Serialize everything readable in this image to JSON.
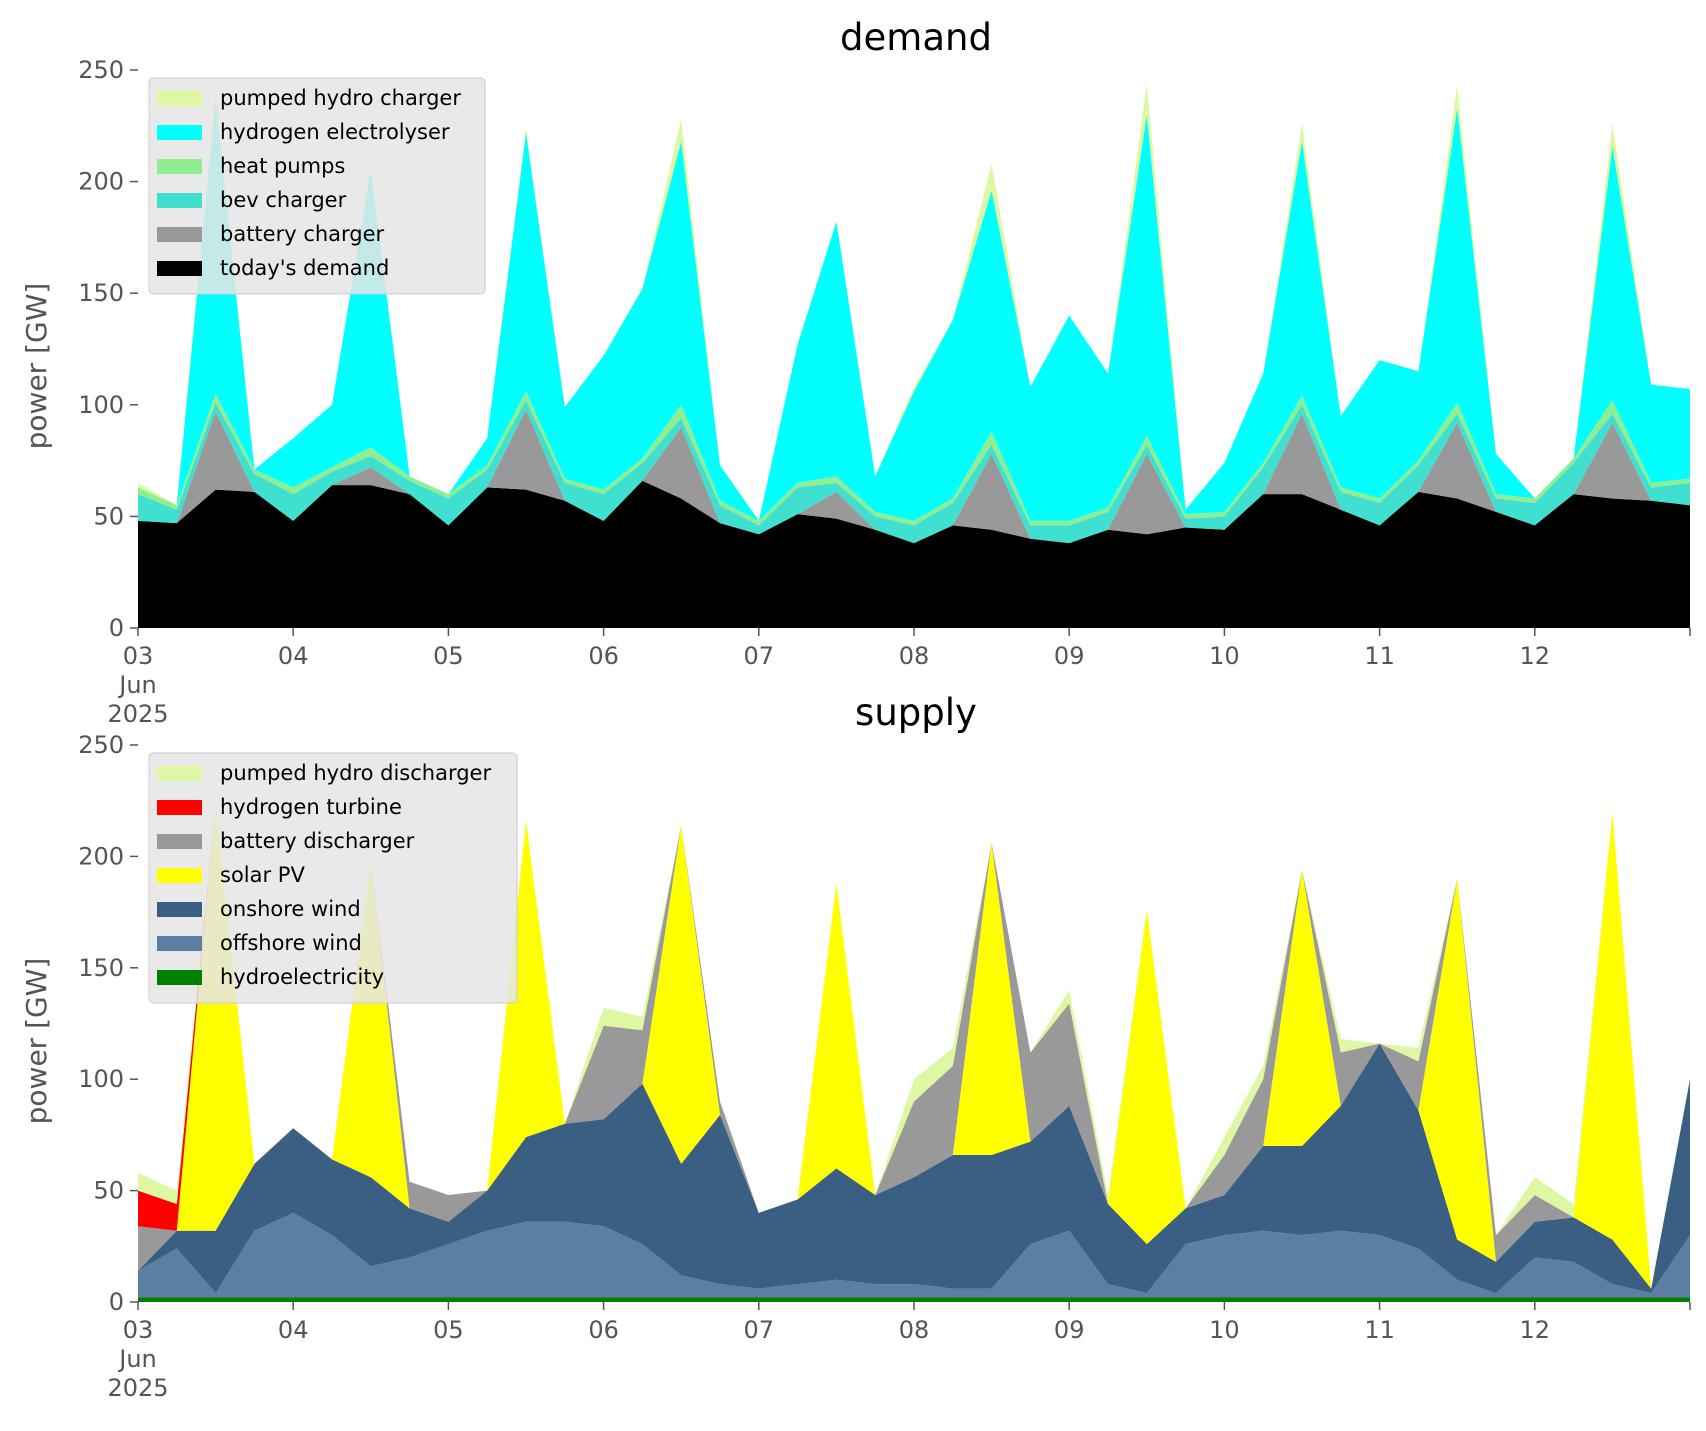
{
  "chart_data": [
    {
      "type": "area",
      "stacked": true,
      "title": "demand",
      "xlabel": "",
      "ylabel": "power [GW]",
      "ylim": [
        0,
        250
      ],
      "yticks": [
        0,
        50,
        100,
        150,
        200,
        250
      ],
      "xlim": [
        "2025-06-03",
        "2025-06-13"
      ],
      "xticks": [
        "2025-06-03",
        "2025-06-04",
        "2025-06-05",
        "2025-06-06",
        "2025-06-07",
        "2025-06-08",
        "2025-06-09",
        "2025-06-10",
        "2025-06-11",
        "2025-06-12",
        "2025-06-13"
      ],
      "xtick_labels": [
        [
          "03",
          "Jun",
          "2025"
        ],
        [
          "04"
        ],
        [
          "05"
        ],
        [
          "06"
        ],
        [
          "07"
        ],
        [
          "08"
        ],
        [
          "09"
        ],
        [
          "10"
        ],
        [
          "11"
        ],
        [
          "12"
        ],
        [
          ""
        ]
      ],
      "grid": false,
      "legend_position": "upper left",
      "legend": [
        "pumped hydro charger",
        "hydrogen electrolyser",
        "heat pumps",
        "bev charger",
        "battery charger",
        "today's demand"
      ],
      "x": [
        "2025-06-03 00:00",
        "2025-06-03 06:00",
        "2025-06-03 12:00",
        "2025-06-03 18:00",
        "2025-06-04 00:00",
        "2025-06-04 06:00",
        "2025-06-04 12:00",
        "2025-06-04 18:00",
        "2025-06-05 00:00",
        "2025-06-05 06:00",
        "2025-06-05 12:00",
        "2025-06-05 18:00",
        "2025-06-06 00:00",
        "2025-06-06 06:00",
        "2025-06-06 12:00",
        "2025-06-06 18:00",
        "2025-06-07 00:00",
        "2025-06-07 06:00",
        "2025-06-07 12:00",
        "2025-06-07 18:00",
        "2025-06-08 00:00",
        "2025-06-08 06:00",
        "2025-06-08 12:00",
        "2025-06-08 18:00",
        "2025-06-09 00:00",
        "2025-06-09 06:00",
        "2025-06-09 12:00",
        "2025-06-09 18:00",
        "2025-06-10 00:00",
        "2025-06-10 06:00",
        "2025-06-10 12:00",
        "2025-06-10 18:00",
        "2025-06-11 00:00",
        "2025-06-11 06:00",
        "2025-06-11 12:00",
        "2025-06-11 18:00",
        "2025-06-12 00:00",
        "2025-06-12 06:00",
        "2025-06-12 12:00",
        "2025-06-12 18:00",
        "2025-06-13 00:00"
      ],
      "series": [
        {
          "name": "today's demand",
          "color": "#000000",
          "values": [
            48,
            47,
            62,
            61,
            48,
            64,
            64,
            60,
            46,
            63,
            62,
            57,
            48,
            66,
            58,
            47,
            42,
            51,
            49,
            44,
            38,
            46,
            44,
            40,
            38,
            44,
            42,
            45,
            44,
            60,
            60,
            53,
            46,
            61,
            58,
            52,
            46,
            60,
            58,
            57,
            55
          ]
        },
        {
          "name": "battery charger",
          "color": "#999999",
          "values": [
            0,
            0,
            35,
            0,
            0,
            0,
            8,
            0,
            0,
            0,
            36,
            0,
            0,
            0,
            32,
            0,
            0,
            0,
            12,
            0,
            0,
            0,
            34,
            0,
            0,
            0,
            36,
            0,
            0,
            0,
            36,
            0,
            0,
            0,
            34,
            0,
            0,
            0,
            34,
            0,
            0
          ]
        },
        {
          "name": "bev charger",
          "color": "#40E0D0",
          "values": [
            12,
            6,
            4,
            8,
            12,
            6,
            5,
            6,
            12,
            8,
            4,
            8,
            12,
            8,
            4,
            8,
            4,
            12,
            4,
            6,
            8,
            10,
            4,
            6,
            8,
            8,
            4,
            4,
            6,
            12,
            4,
            8,
            10,
            12,
            4,
            6,
            10,
            14,
            4,
            6,
            10
          ]
        },
        {
          "name": "heat pumps",
          "color": "#90EE90",
          "values": [
            3,
            2,
            4,
            2,
            3,
            2,
            4,
            2,
            2,
            2,
            4,
            2,
            2,
            2,
            6,
            2,
            2,
            2,
            3,
            2,
            2,
            2,
            6,
            2,
            2,
            2,
            4,
            2,
            2,
            2,
            4,
            2,
            2,
            2,
            5,
            2,
            2,
            2,
            6,
            2,
            2
          ]
        },
        {
          "name": "hydrogen electrolyser",
          "color": "#00FFFF",
          "values": [
            0,
            0,
            132,
            0,
            22,
            28,
            124,
            0,
            0,
            12,
            116,
            32,
            60,
            76,
            118,
            16,
            0,
            62,
            114,
            16,
            58,
            80,
            108,
            60,
            92,
            60,
            144,
            2,
            22,
            40,
            114,
            32,
            62,
            40,
            132,
            18,
            0,
            0,
            114,
            44,
            40
          ]
        },
        {
          "name": "pumped hydro charger",
          "color": "#DDF7A2",
          "values": [
            2,
            0,
            4,
            0,
            0,
            0,
            0,
            0,
            0,
            0,
            2,
            0,
            0,
            0,
            10,
            0,
            0,
            0,
            0,
            0,
            2,
            0,
            12,
            0,
            0,
            0,
            14,
            0,
            0,
            0,
            8,
            0,
            0,
            0,
            10,
            0,
            0,
            0,
            10,
            0,
            0
          ]
        }
      ]
    },
    {
      "type": "area",
      "stacked": true,
      "title": "supply",
      "xlabel": "",
      "ylabel": "power [GW]",
      "ylim": [
        0,
        250
      ],
      "yticks": [
        0,
        50,
        100,
        150,
        200,
        250
      ],
      "xlim": [
        "2025-06-03",
        "2025-06-13"
      ],
      "xticks": [
        "2025-06-03",
        "2025-06-04",
        "2025-06-05",
        "2025-06-06",
        "2025-06-07",
        "2025-06-08",
        "2025-06-09",
        "2025-06-10",
        "2025-06-11",
        "2025-06-12",
        "2025-06-13"
      ],
      "xtick_labels": [
        [
          "03",
          "Jun",
          "2025"
        ],
        [
          "04"
        ],
        [
          "05"
        ],
        [
          "06"
        ],
        [
          "07"
        ],
        [
          "08"
        ],
        [
          "09"
        ],
        [
          "10"
        ],
        [
          "11"
        ],
        [
          "12"
        ],
        [
          ""
        ]
      ],
      "grid": false,
      "legend_position": "upper left",
      "legend": [
        "pumped hydro discharger",
        "hydrogen turbine",
        "battery discharger",
        "solar PV",
        "onshore wind",
        "offshore wind",
        "hydroelectricity"
      ],
      "x": [
        "2025-06-03 00:00",
        "2025-06-03 06:00",
        "2025-06-03 12:00",
        "2025-06-03 18:00",
        "2025-06-04 00:00",
        "2025-06-04 06:00",
        "2025-06-04 12:00",
        "2025-06-04 18:00",
        "2025-06-05 00:00",
        "2025-06-05 06:00",
        "2025-06-05 12:00",
        "2025-06-05 18:00",
        "2025-06-06 00:00",
        "2025-06-06 06:00",
        "2025-06-06 12:00",
        "2025-06-06 18:00",
        "2025-06-07 00:00",
        "2025-06-07 06:00",
        "2025-06-07 12:00",
        "2025-06-07 18:00",
        "2025-06-08 00:00",
        "2025-06-08 06:00",
        "2025-06-08 12:00",
        "2025-06-08 18:00",
        "2025-06-09 00:00",
        "2025-06-09 06:00",
        "2025-06-09 12:00",
        "2025-06-09 18:00",
        "2025-06-10 00:00",
        "2025-06-10 06:00",
        "2025-06-10 12:00",
        "2025-06-10 18:00",
        "2025-06-11 00:00",
        "2025-06-11 06:00",
        "2025-06-11 12:00",
        "2025-06-11 18:00",
        "2025-06-12 00:00",
        "2025-06-12 06:00",
        "2025-06-12 12:00",
        "2025-06-12 18:00",
        "2025-06-13 00:00"
      ],
      "series": [
        {
          "name": "hydroelectricity",
          "color": "#008000",
          "values": [
            2,
            2,
            2,
            2,
            2,
            2,
            2,
            2,
            2,
            2,
            2,
            2,
            2,
            2,
            2,
            2,
            2,
            2,
            2,
            2,
            2,
            2,
            2,
            2,
            2,
            2,
            2,
            2,
            2,
            2,
            2,
            2,
            2,
            2,
            2,
            2,
            2,
            2,
            2,
            2,
            2
          ]
        },
        {
          "name": "offshore wind",
          "color": "#5B7FA2",
          "values": [
            12,
            22,
            2,
            30,
            38,
            28,
            14,
            18,
            24,
            30,
            34,
            34,
            32,
            24,
            10,
            6,
            4,
            6,
            8,
            6,
            6,
            4,
            4,
            24,
            30,
            6,
            2,
            24,
            28,
            30,
            28,
            30,
            28,
            22,
            8,
            2,
            18,
            16,
            6,
            2,
            28
          ]
        },
        {
          "name": "onshore wind",
          "color": "#3B5F82",
          "values": [
            0,
            8,
            28,
            30,
            38,
            34,
            40,
            22,
            10,
            18,
            38,
            44,
            48,
            72,
            50,
            76,
            34,
            38,
            50,
            40,
            48,
            60,
            60,
            46,
            56,
            36,
            22,
            16,
            18,
            38,
            40,
            56,
            86,
            62,
            18,
            14,
            16,
            20,
            20,
            2,
            70
          ]
        },
        {
          "name": "solar PV",
          "color": "#FFFF00",
          "values": [
            0,
            0,
            192,
            0,
            0,
            0,
            142,
            0,
            0,
            0,
            142,
            0,
            0,
            0,
            152,
            0,
            0,
            0,
            128,
            0,
            0,
            0,
            140,
            0,
            0,
            0,
            150,
            0,
            0,
            0,
            124,
            0,
            0,
            0,
            162,
            0,
            0,
            0,
            192,
            0,
            0
          ]
        },
        {
          "name": "battery discharger",
          "color": "#999999",
          "values": [
            20,
            0,
            0,
            0,
            0,
            0,
            0,
            12,
            12,
            0,
            0,
            0,
            42,
            24,
            0,
            6,
            0,
            0,
            0,
            0,
            34,
            40,
            0,
            40,
            46,
            0,
            0,
            0,
            18,
            30,
            0,
            24,
            0,
            22,
            0,
            12,
            12,
            0,
            0,
            0,
            0
          ]
        },
        {
          "name": "hydrogen turbine",
          "color": "#FF0000",
          "values": [
            16,
            12,
            0,
            0,
            0,
            0,
            0,
            0,
            0,
            0,
            0,
            0,
            0,
            0,
            0,
            0,
            0,
            0,
            0,
            0,
            0,
            0,
            0,
            0,
            0,
            0,
            0,
            0,
            0,
            0,
            0,
            0,
            0,
            0,
            0,
            0,
            0,
            0,
            0,
            0,
            0
          ]
        },
        {
          "name": "pumped hydro discharger",
          "color": "#DDF7A2",
          "values": [
            8,
            6,
            0,
            0,
            0,
            0,
            0,
            0,
            0,
            0,
            0,
            0,
            8,
            6,
            0,
            0,
            0,
            0,
            0,
            0,
            10,
            8,
            0,
            0,
            6,
            4,
            0,
            0,
            8,
            6,
            0,
            6,
            0,
            6,
            0,
            0,
            8,
            6,
            0,
            0,
            0
          ]
        }
      ]
    }
  ]
}
